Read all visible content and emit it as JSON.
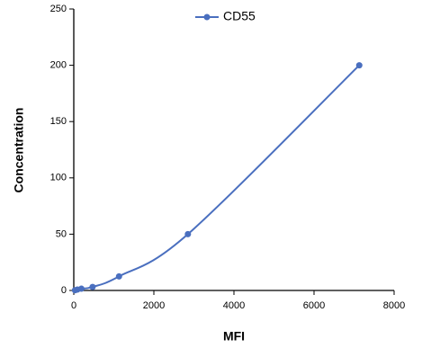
{
  "chart_data": {
    "type": "line",
    "x_label": "MFI",
    "y_label": "Concentration",
    "x": [
      30,
      90,
      190,
      470,
      1130,
      2850,
      7130
    ],
    "series": [
      {
        "name": "CD55",
        "color": "#4a6fbf",
        "values": [
          0.2,
          0.8,
          1.56,
          3.12,
          12.5,
          50,
          200
        ]
      }
    ],
    "xlim": [
      0,
      8000
    ],
    "xticks": [
      0,
      2000,
      4000,
      6000,
      8000
    ],
    "ylim": [
      0,
      250
    ],
    "yticks": [
      0,
      50,
      100,
      150,
      200,
      250
    ],
    "grid": false,
    "legend": "top"
  }
}
